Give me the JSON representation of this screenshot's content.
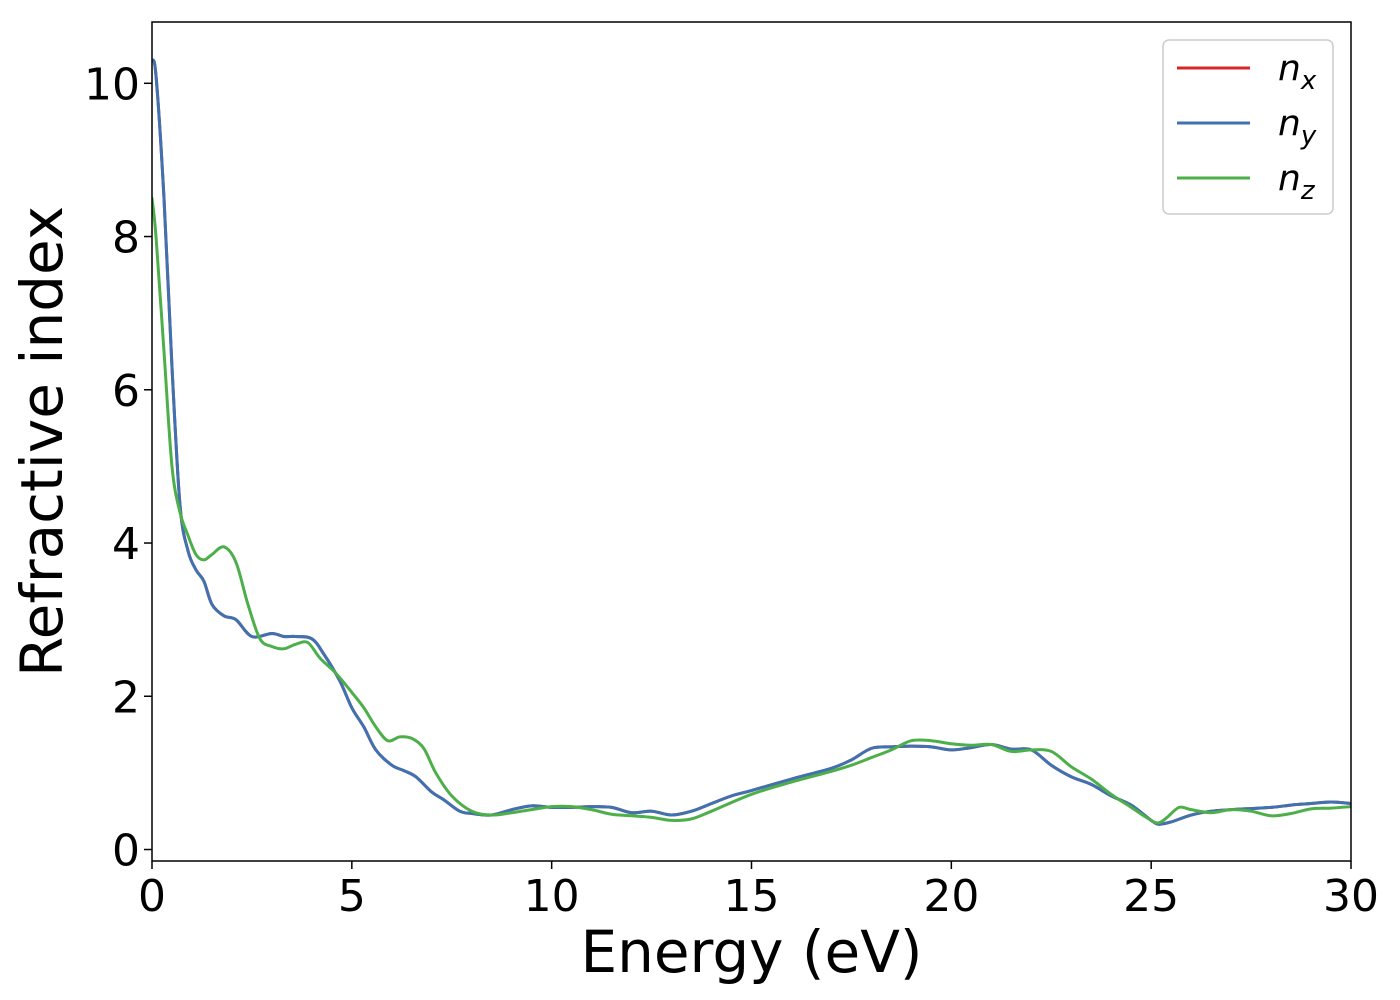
{
  "chart_data": {
    "type": "line",
    "xlabel": "Energy (eV)",
    "ylabel": "Refractive index",
    "xlim": [
      0,
      30
    ],
    "ylim": [
      -0.15,
      10.8
    ],
    "xticks": [
      0,
      5,
      10,
      15,
      20,
      25,
      30
    ],
    "yticks": [
      0,
      2,
      4,
      6,
      8,
      10
    ],
    "xtick_labels": [
      "0",
      "5",
      "10",
      "15",
      "20",
      "25",
      "30"
    ],
    "ytick_labels": [
      "0",
      "2",
      "4",
      "6",
      "8",
      "10"
    ],
    "grid": false,
    "legend_position": "top-right",
    "series": [
      {
        "name": "n",
        "subscript": "x",
        "color": "#d62728",
        "x": [
          0,
          0.1,
          0.3,
          0.5,
          0.7,
          0.9,
          1.1,
          1.3,
          1.5,
          1.8,
          2.1,
          2.5,
          3.0,
          3.3,
          3.6,
          4.0,
          4.3,
          4.7,
          5.0,
          5.3,
          5.6,
          6.0,
          6.3,
          6.6,
          7.0,
          7.3,
          7.7,
          8.0,
          8.5,
          9.0,
          9.5,
          10.0,
          10.5,
          11.0,
          11.5,
          12.0,
          12.5,
          13.0,
          13.5,
          14.0,
          14.5,
          15.0,
          16.0,
          17.0,
          17.5,
          18.0,
          18.5,
          19.0,
          19.5,
          20.0,
          20.5,
          21.0,
          21.5,
          22.0,
          22.5,
          23.0,
          23.5,
          24.0,
          24.5,
          25.0,
          25.2,
          25.5,
          26.0,
          26.5,
          27.0,
          28.0,
          28.5,
          29.0,
          29.5,
          30.0
        ],
        "y": [
          10.3,
          10.1,
          8.5,
          6.3,
          4.5,
          3.9,
          3.65,
          3.5,
          3.2,
          3.05,
          3.0,
          2.78,
          2.82,
          2.78,
          2.78,
          2.75,
          2.55,
          2.2,
          1.85,
          1.6,
          1.3,
          1.1,
          1.03,
          0.95,
          0.75,
          0.65,
          0.5,
          0.47,
          0.45,
          0.52,
          0.57,
          0.55,
          0.55,
          0.56,
          0.55,
          0.48,
          0.5,
          0.45,
          0.5,
          0.6,
          0.7,
          0.77,
          0.92,
          1.06,
          1.17,
          1.32,
          1.34,
          1.35,
          1.34,
          1.3,
          1.33,
          1.37,
          1.31,
          1.3,
          1.1,
          0.95,
          0.85,
          0.7,
          0.58,
          0.38,
          0.33,
          0.36,
          0.45,
          0.5,
          0.52,
          0.55,
          0.58,
          0.6,
          0.62,
          0.6
        ]
      },
      {
        "name": "n",
        "subscript": "y",
        "color": "#3f72b0",
        "x": [
          0,
          0.1,
          0.3,
          0.5,
          0.7,
          0.9,
          1.1,
          1.3,
          1.5,
          1.8,
          2.1,
          2.5,
          3.0,
          3.3,
          3.6,
          4.0,
          4.3,
          4.7,
          5.0,
          5.3,
          5.6,
          6.0,
          6.3,
          6.6,
          7.0,
          7.3,
          7.7,
          8.0,
          8.5,
          9.0,
          9.5,
          10.0,
          10.5,
          11.0,
          11.5,
          12.0,
          12.5,
          13.0,
          13.5,
          14.0,
          14.5,
          15.0,
          16.0,
          17.0,
          17.5,
          18.0,
          18.5,
          19.0,
          19.5,
          20.0,
          20.5,
          21.0,
          21.5,
          22.0,
          22.5,
          23.0,
          23.5,
          24.0,
          24.5,
          25.0,
          25.2,
          25.5,
          26.0,
          26.5,
          27.0,
          28.0,
          28.5,
          29.0,
          29.5,
          30.0
        ],
        "y": [
          10.3,
          10.1,
          8.5,
          6.3,
          4.5,
          3.9,
          3.65,
          3.5,
          3.2,
          3.05,
          3.0,
          2.78,
          2.82,
          2.78,
          2.78,
          2.75,
          2.55,
          2.2,
          1.85,
          1.6,
          1.3,
          1.1,
          1.03,
          0.95,
          0.75,
          0.65,
          0.5,
          0.47,
          0.45,
          0.52,
          0.57,
          0.55,
          0.55,
          0.56,
          0.55,
          0.48,
          0.5,
          0.45,
          0.5,
          0.6,
          0.7,
          0.77,
          0.92,
          1.06,
          1.17,
          1.32,
          1.34,
          1.35,
          1.34,
          1.3,
          1.33,
          1.37,
          1.31,
          1.3,
          1.1,
          0.95,
          0.85,
          0.7,
          0.58,
          0.38,
          0.33,
          0.36,
          0.45,
          0.5,
          0.52,
          0.55,
          0.58,
          0.6,
          0.62,
          0.6
        ]
      },
      {
        "name": "n",
        "subscript": "z",
        "color": "#4daf4a",
        "x": [
          0,
          0.1,
          0.3,
          0.5,
          0.7,
          0.9,
          1.1,
          1.3,
          1.5,
          1.8,
          2.1,
          2.4,
          2.7,
          3.0,
          3.3,
          3.6,
          3.9,
          4.2,
          4.6,
          5.0,
          5.3,
          5.6,
          5.9,
          6.2,
          6.5,
          6.8,
          7.1,
          7.5,
          8.0,
          8.5,
          9.0,
          9.5,
          10.0,
          10.5,
          11.0,
          11.5,
          12.0,
          12.5,
          13.0,
          13.5,
          14.0,
          15.0,
          16.0,
          17.0,
          17.5,
          18.0,
          18.5,
          19.0,
          19.5,
          20.0,
          20.5,
          21.0,
          21.5,
          22.0,
          22.5,
          23.0,
          23.5,
          24.0,
          24.5,
          25.0,
          25.2,
          25.4,
          25.7,
          26.0,
          26.5,
          27.0,
          27.5,
          28.0,
          28.5,
          29.0,
          29.5,
          30.0
        ],
        "y": [
          8.5,
          8.0,
          6.5,
          5.0,
          4.4,
          4.1,
          3.85,
          3.78,
          3.85,
          3.95,
          3.75,
          3.2,
          2.75,
          2.65,
          2.62,
          2.68,
          2.7,
          2.5,
          2.3,
          2.05,
          1.85,
          1.6,
          1.42,
          1.47,
          1.45,
          1.32,
          1.0,
          0.7,
          0.5,
          0.45,
          0.48,
          0.52,
          0.56,
          0.56,
          0.52,
          0.46,
          0.44,
          0.42,
          0.38,
          0.4,
          0.5,
          0.72,
          0.88,
          1.02,
          1.1,
          1.2,
          1.3,
          1.42,
          1.42,
          1.38,
          1.36,
          1.37,
          1.28,
          1.3,
          1.28,
          1.08,
          0.92,
          0.72,
          0.55,
          0.38,
          0.35,
          0.42,
          0.55,
          0.52,
          0.48,
          0.52,
          0.5,
          0.44,
          0.47,
          0.53,
          0.54,
          0.56
        ]
      }
    ]
  }
}
